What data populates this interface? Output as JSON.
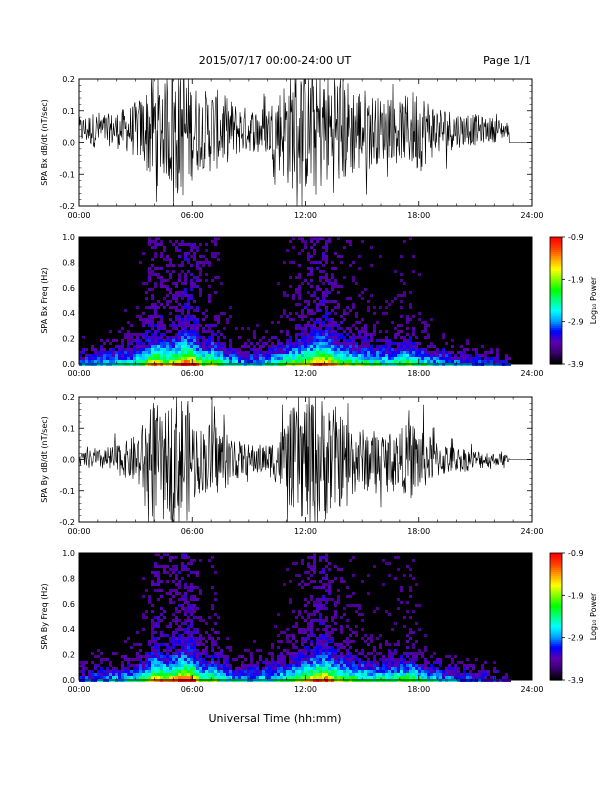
{
  "header": {
    "title": "2015/07/17  00:00-24:00 UT",
    "page": "Page 1/1"
  },
  "footer": {
    "xlabel": "Universal Time (hh:mm)"
  },
  "colorbar": {
    "label": "Log₁₀ Power",
    "ticks": [
      "-0.9",
      "-1.9",
      "-2.9",
      "-3.9"
    ]
  },
  "chart_data": [
    {
      "type": "line",
      "ylabel": "SPA Bx dB/dt (nT/sec)",
      "xticks": [
        "00:00",
        "06:00",
        "12:00",
        "18:00",
        "24:00"
      ],
      "yticks": [
        "0.2",
        "0.1",
        "0.0",
        "-0.1",
        "-0.2"
      ],
      "xlim_hours": [
        0,
        24
      ],
      "ylim": [
        -0.2,
        0.2
      ],
      "data_end_hours": 22.8,
      "baseline": 0.04,
      "series": [
        {
          "x": [
            0,
            0.5,
            1,
            1.5,
            2,
            2.5,
            3,
            3.5,
            3.8,
            4,
            4.3,
            4.6,
            5,
            5.3,
            5.6,
            6,
            6.5,
            7,
            7.5,
            8,
            8.5,
            9,
            9.5,
            10,
            10.5,
            11,
            11.5,
            12,
            12.3,
            12.6,
            13,
            13.5,
            14,
            14.5,
            15,
            15.5,
            16,
            16.5,
            17,
            17.5,
            18,
            18.5,
            19,
            19.5,
            20,
            20.5,
            21,
            21.5,
            22,
            22.5,
            22.8
          ],
          "amplitude": [
            0.04,
            0.05,
            0.06,
            0.05,
            0.06,
            0.07,
            0.09,
            0.12,
            0.18,
            0.2,
            0.16,
            0.15,
            0.22,
            0.22,
            0.22,
            0.16,
            0.12,
            0.14,
            0.12,
            0.1,
            0.08,
            0.07,
            0.07,
            0.08,
            0.12,
            0.18,
            0.2,
            0.2,
            0.22,
            0.22,
            0.18,
            0.2,
            0.18,
            0.15,
            0.14,
            0.12,
            0.1,
            0.09,
            0.09,
            0.12,
            0.14,
            0.1,
            0.08,
            0.07,
            0.06,
            0.05,
            0.05,
            0.04,
            0.04,
            0.03,
            0.02
          ]
        }
      ]
    },
    {
      "type": "heatmap",
      "ylabel": "SPA Bx Freq (Hz)",
      "xticks": [
        "00:00",
        "06:00",
        "12:00",
        "18:00",
        "24:00"
      ],
      "yticks": [
        "1.0",
        "0.8",
        "0.6",
        "0.4",
        "0.2",
        "0.0"
      ],
      "xlim_hours": [
        0,
        24
      ],
      "ylim": [
        0,
        1.0
      ],
      "zlim": [
        -3.9,
        -0.9
      ],
      "colorscale": [
        "#000000",
        "#3a0070",
        "#5c00b0",
        "#0000ff",
        "#00a0ff",
        "#00ffff",
        "#00ff80",
        "#00ff00",
        "#80ff00",
        "#ffff00",
        "#ffa000",
        "#ff4000",
        "#ff0000"
      ],
      "data_end_hours": 22.8,
      "activity_hours": [
        0.5,
        1,
        1.5,
        2,
        2.5,
        3,
        3.5,
        4,
        4.5,
        5,
        5.5,
        6,
        6.5,
        7,
        7.5,
        8,
        8.5,
        9,
        9.5,
        10,
        10.5,
        11,
        11.5,
        12,
        12.5,
        13,
        13.5,
        14,
        14.5,
        15,
        15.5,
        16,
        16.5,
        17,
        17.5,
        18,
        18.5,
        19,
        19.5,
        20,
        20.5,
        21,
        21.5,
        22,
        22.5
      ],
      "activity_level": [
        0.35,
        0.4,
        0.4,
        0.45,
        0.45,
        0.5,
        0.65,
        0.85,
        0.7,
        0.75,
        0.95,
        0.9,
        0.6,
        0.7,
        0.55,
        0.45,
        0.4,
        0.4,
        0.42,
        0.45,
        0.5,
        0.6,
        0.65,
        0.75,
        0.85,
        0.9,
        0.7,
        0.65,
        0.6,
        0.55,
        0.55,
        0.5,
        0.5,
        0.55,
        0.6,
        0.5,
        0.45,
        0.4,
        0.38,
        0.35,
        0.32,
        0.3,
        0.3,
        0.28,
        0.25
      ]
    },
    {
      "type": "line",
      "ylabel": "SPA By dB/dt (nT/sec)",
      "xticks": [
        "00:00",
        "06:00",
        "12:00",
        "18:00",
        "24:00"
      ],
      "yticks": [
        "0.2",
        "0.1",
        "0.0",
        "-0.1",
        "-0.2"
      ],
      "xlim_hours": [
        0,
        24
      ],
      "ylim": [
        -0.2,
        0.2
      ],
      "data_end_hours": 22.8,
      "baseline": 0.0,
      "series": [
        {
          "x": [
            0,
            0.5,
            1,
            1.5,
            2,
            2.5,
            3,
            3.5,
            3.8,
            4,
            4.3,
            4.6,
            5,
            5.3,
            5.6,
            6,
            6.5,
            7,
            7.5,
            8,
            8.5,
            9,
            9.5,
            10,
            10.5,
            11,
            11.5,
            12,
            12.3,
            12.6,
            13,
            13.5,
            14,
            14.5,
            15,
            15.5,
            16,
            16.5,
            17,
            17.5,
            18,
            18.5,
            19,
            19.5,
            20,
            20.5,
            21,
            21.5,
            22,
            22.5,
            22.8
          ],
          "amplitude": [
            0.02,
            0.03,
            0.03,
            0.04,
            0.05,
            0.06,
            0.08,
            0.13,
            0.17,
            0.22,
            0.14,
            0.15,
            0.22,
            0.22,
            0.22,
            0.15,
            0.1,
            0.13,
            0.11,
            0.08,
            0.06,
            0.05,
            0.05,
            0.05,
            0.08,
            0.14,
            0.18,
            0.2,
            0.22,
            0.22,
            0.2,
            0.18,
            0.14,
            0.12,
            0.1,
            0.1,
            0.09,
            0.08,
            0.1,
            0.12,
            0.12,
            0.08,
            0.06,
            0.05,
            0.04,
            0.04,
            0.03,
            0.03,
            0.02,
            0.02,
            0.01
          ]
        }
      ]
    },
    {
      "type": "heatmap",
      "ylabel": "SPA By Freq (Hz)",
      "xticks": [
        "00:00",
        "06:00",
        "12:00",
        "18:00",
        "24:00"
      ],
      "yticks": [
        "1.0",
        "0.8",
        "0.6",
        "0.4",
        "0.2",
        "0.0"
      ],
      "xlim_hours": [
        0,
        24
      ],
      "ylim": [
        0,
        1.0
      ],
      "zlim": [
        -3.9,
        -0.9
      ],
      "colorscale": [
        "#000000",
        "#3a0070",
        "#5c00b0",
        "#0000ff",
        "#00a0ff",
        "#00ffff",
        "#00ff80",
        "#00ff00",
        "#80ff00",
        "#ffff00",
        "#ffa000",
        "#ff4000",
        "#ff0000"
      ],
      "data_end_hours": 22.8,
      "activity_hours": [
        0.5,
        1,
        1.5,
        2,
        2.5,
        3,
        3.5,
        4,
        4.5,
        5,
        5.5,
        6,
        6.5,
        7,
        7.5,
        8,
        8.5,
        9,
        9.5,
        10,
        10.5,
        11,
        11.5,
        12,
        12.5,
        13,
        13.5,
        14,
        14.5,
        15,
        15.5,
        16,
        16.5,
        17,
        17.5,
        18,
        18.5,
        19,
        19.5,
        20,
        20.5,
        21,
        21.5,
        22,
        22.5
      ],
      "activity_level": [
        0.32,
        0.35,
        0.38,
        0.4,
        0.42,
        0.48,
        0.6,
        0.85,
        0.7,
        0.8,
        0.95,
        0.85,
        0.55,
        0.65,
        0.5,
        0.42,
        0.4,
        0.4,
        0.42,
        0.42,
        0.48,
        0.55,
        0.62,
        0.72,
        0.82,
        0.9,
        0.7,
        0.62,
        0.58,
        0.55,
        0.52,
        0.5,
        0.55,
        0.58,
        0.62,
        0.5,
        0.45,
        0.4,
        0.36,
        0.34,
        0.32,
        0.3,
        0.28,
        0.26,
        0.24
      ]
    }
  ]
}
